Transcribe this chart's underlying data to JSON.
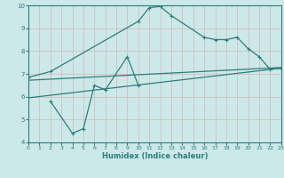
{
  "xlabel": "Humidex (Indice chaleur)",
  "xlim": [
    0,
    23
  ],
  "ylim": [
    4,
    10
  ],
  "xticks": [
    0,
    1,
    2,
    3,
    4,
    5,
    6,
    7,
    8,
    9,
    10,
    11,
    12,
    13,
    14,
    15,
    16,
    17,
    18,
    19,
    20,
    21,
    22,
    23
  ],
  "yticks": [
    4,
    5,
    6,
    7,
    8,
    9,
    10
  ],
  "bg_color": "#cce8e8",
  "line_color": "#2e7d7d",
  "grid_color": "#b0d4d4",
  "line1_x": [
    0,
    2,
    10,
    11,
    12,
    13,
    16,
    17,
    18,
    19,
    20,
    21,
    22,
    23
  ],
  "line1_y": [
    6.85,
    7.1,
    9.3,
    9.9,
    9.95,
    9.55,
    8.6,
    8.5,
    8.5,
    8.6,
    8.1,
    7.75,
    7.2,
    7.25
  ],
  "line2_x": [
    2,
    4,
    5,
    6,
    7,
    9,
    10
  ],
  "line2_y": [
    5.8,
    4.4,
    4.6,
    6.5,
    6.3,
    7.75,
    6.5
  ],
  "line3_x": [
    0,
    23
  ],
  "line3_y": [
    5.95,
    7.25
  ],
  "line4_x": [
    0,
    23
  ],
  "line4_y": [
    6.72,
    7.28
  ]
}
